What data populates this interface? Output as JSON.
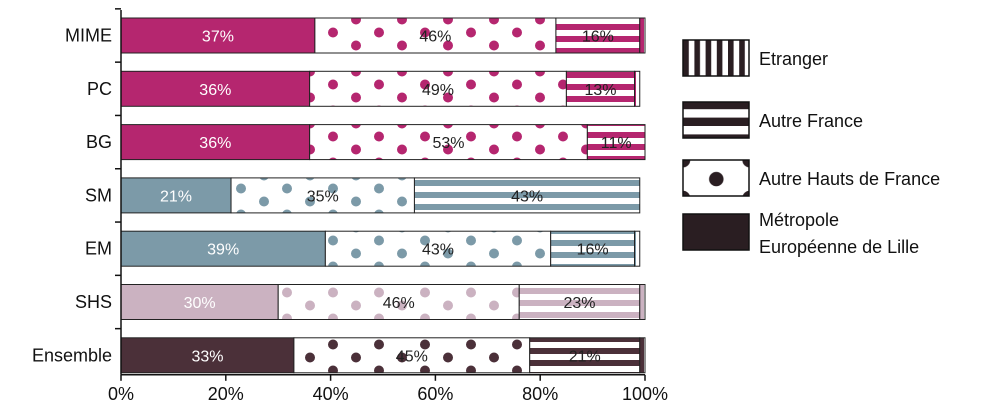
{
  "chart_data": {
    "type": "bar",
    "orientation": "horizontal",
    "stacked": true,
    "categories": [
      "MIME",
      "PC",
      "BG",
      "SM",
      "EM",
      "SHS",
      "Ensemble"
    ],
    "category_colors": [
      "#b5266f",
      "#b5266f",
      "#b5266f",
      "#7c9aa8",
      "#7c9aa8",
      "#cbb2c1",
      "#4b3039"
    ],
    "series": [
      {
        "name": "Métropole Européenne de Lille",
        "values": [
          37,
          36,
          36,
          21,
          39,
          30,
          33
        ],
        "labels": [
          "37%",
          "36%",
          "36%",
          "21%",
          "39%",
          "30%",
          "33%"
        ],
        "pattern": "solid"
      },
      {
        "name": "Autre Hauts de France",
        "values": [
          46,
          49,
          53,
          35,
          43,
          46,
          45
        ],
        "labels": [
          "46%",
          "49%",
          "53%",
          "35%",
          "43%",
          "46%",
          "45%"
        ],
        "pattern": "dots"
      },
      {
        "name": "Autre France",
        "values": [
          16,
          13,
          11,
          43,
          16,
          23,
          21
        ],
        "labels": [
          "16%",
          "13%",
          "11%",
          "43%",
          "16%",
          "23%",
          "21%"
        ],
        "pattern": "hstripes"
      },
      {
        "name": "Etranger",
        "values": [
          1,
          1,
          0,
          0,
          1,
          1,
          1
        ],
        "labels": [
          "",
          "",
          "",
          "",
          "",
          "",
          ""
        ],
        "pattern": "vstripes"
      }
    ],
    "xlim": [
      0,
      100
    ],
    "x_ticks": [
      "0%",
      "20%",
      "40%",
      "60%",
      "80%",
      "100%"
    ],
    "legend": {
      "placement": "right",
      "entries": [
        {
          "label": "Etranger",
          "pattern": "vstripes"
        },
        {
          "label": "Autre France",
          "pattern": "hstripes"
        },
        {
          "label": "Autre Hauts de France",
          "pattern": "dots"
        },
        {
          "label": "Métropole\nEuropéenne de Lille",
          "pattern": "solid"
        }
      ],
      "color": "#2a1e22"
    },
    "grid": false
  }
}
